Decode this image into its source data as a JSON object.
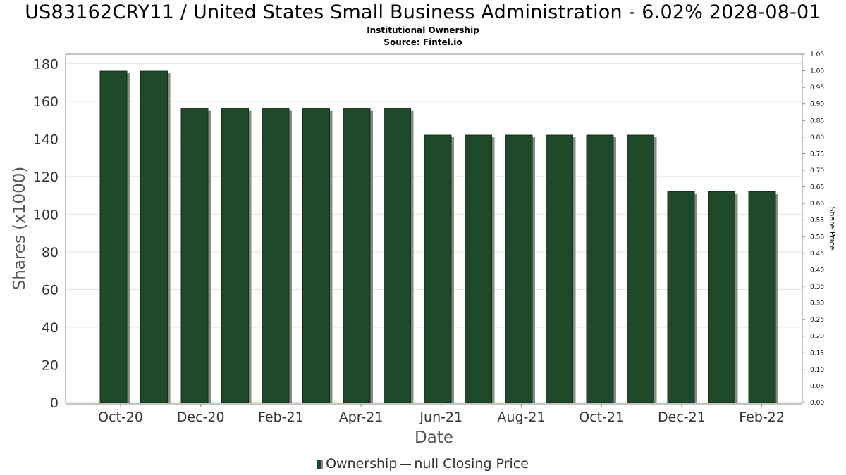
{
  "header": {
    "title": "US83162CRY11 / United States Small Business Administration - 6.02% 2028-08-01",
    "subtitle": "Institutional Ownership",
    "source": "Source: Fintel.io"
  },
  "legend": {
    "ownership": "Ownership",
    "price": "null Closing Price"
  },
  "colors": {
    "bar": "#1e4a2a",
    "bar_shadow": "#8a8a8a",
    "grid": "#e2e2e2",
    "axis": "#888888"
  },
  "chart_data": {
    "type": "bar",
    "xlabel": "Date",
    "ylabel": "Shares (x1000)",
    "y2label": "Share Price",
    "ylim": [
      0,
      185
    ],
    "y2lim": [
      0,
      1.05
    ],
    "yticks": [
      0,
      20,
      40,
      60,
      80,
      100,
      120,
      140,
      160,
      180
    ],
    "y2ticks": [
      "0.00",
      "0.05",
      "0.10",
      "0.15",
      "0.20",
      "0.25",
      "0.30",
      "0.35",
      "0.40",
      "0.45",
      "0.50",
      "0.55",
      "0.60",
      "0.65",
      "0.70",
      "0.75",
      "0.80",
      "0.85",
      "0.90",
      "0.95",
      "1.00",
      "1.05"
    ],
    "xticks": [
      "Oct-20",
      "Dec-20",
      "Feb-21",
      "Apr-21",
      "Jun-21",
      "Aug-21",
      "Oct-21",
      "Dec-21",
      "Feb-22"
    ],
    "grid": true,
    "legend_position": "bottom",
    "series": [
      {
        "name": "Ownership",
        "values": [
          176,
          176,
          156,
          156,
          156,
          156,
          156,
          156,
          142,
          142,
          142,
          142,
          142,
          142,
          112,
          112,
          112
        ]
      }
    ]
  }
}
